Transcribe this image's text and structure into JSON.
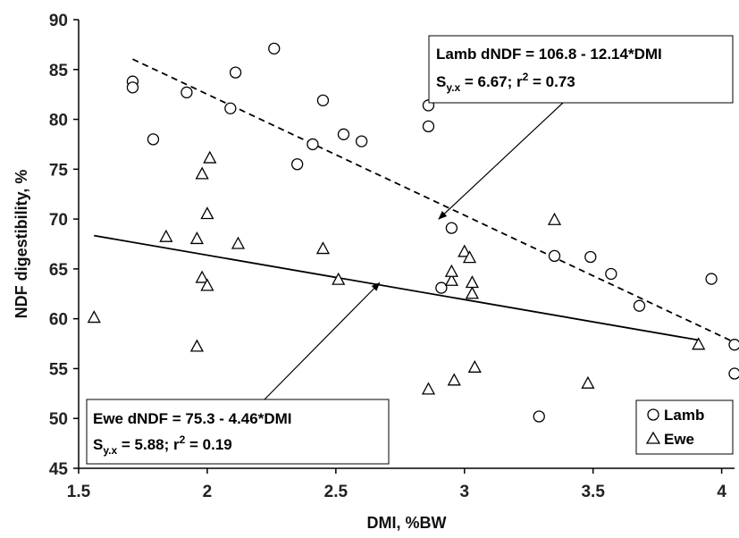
{
  "chart_data": {
    "type": "scatter",
    "xlabel": "DMI, %BW",
    "ylabel": "NDF digestibility, %",
    "xlim": [
      1.5,
      4.05
    ],
    "ylim": [
      45,
      90
    ],
    "xticks": [
      1.5,
      2,
      2.5,
      3,
      3.5,
      4
    ],
    "yticks": [
      45,
      50,
      55,
      60,
      65,
      70,
      75,
      80,
      85,
      90
    ],
    "grid": false,
    "legend_position": "bottom-right",
    "series": [
      {
        "name": "Lamb",
        "marker": "circle",
        "points": [
          [
            1.71,
            83.8
          ],
          [
            1.71,
            83.2
          ],
          [
            1.79,
            78.0
          ],
          [
            1.92,
            82.7
          ],
          [
            2.09,
            81.1
          ],
          [
            2.11,
            84.7
          ],
          [
            2.26,
            87.1
          ],
          [
            2.35,
            75.5
          ],
          [
            2.41,
            77.5
          ],
          [
            2.45,
            81.9
          ],
          [
            2.53,
            78.5
          ],
          [
            2.6,
            77.8
          ],
          [
            2.86,
            81.4
          ],
          [
            2.86,
            79.3
          ],
          [
            2.91,
            63.1
          ],
          [
            2.95,
            69.1
          ],
          [
            3.29,
            50.2
          ],
          [
            3.35,
            66.3
          ],
          [
            3.49,
            66.2
          ],
          [
            3.57,
            64.5
          ],
          [
            3.68,
            61.3
          ],
          [
            3.96,
            64.0
          ],
          [
            4.05,
            57.4
          ],
          [
            4.05,
            54.5
          ]
        ]
      },
      {
        "name": "Ewe",
        "marker": "triangle",
        "points": [
          [
            1.56,
            60.1
          ],
          [
            1.84,
            68.2
          ],
          [
            1.96,
            68.0
          ],
          [
            1.96,
            57.2
          ],
          [
            1.98,
            74.5
          ],
          [
            1.98,
            64.1
          ],
          [
            2.0,
            63.3
          ],
          [
            2.0,
            70.5
          ],
          [
            2.01,
            76.1
          ],
          [
            2.12,
            67.5
          ],
          [
            2.45,
            67.0
          ],
          [
            2.51,
            63.9
          ],
          [
            2.86,
            52.9
          ],
          [
            2.95,
            63.8
          ],
          [
            2.95,
            64.7
          ],
          [
            2.96,
            53.8
          ],
          [
            3.0,
            66.7
          ],
          [
            3.02,
            66.1
          ],
          [
            3.03,
            62.5
          ],
          [
            3.03,
            63.6
          ],
          [
            3.04,
            55.1
          ],
          [
            3.35,
            69.9
          ],
          [
            3.48,
            53.5
          ],
          [
            3.91,
            57.4
          ]
        ]
      }
    ],
    "regressions": [
      {
        "series": "Lamb",
        "intercept": 106.8,
        "slope": -12.14,
        "x_range": [
          1.71,
          4.05
        ],
        "style": "dashed"
      },
      {
        "series": "Ewe",
        "intercept": 75.3,
        "slope": -4.46,
        "x_range": [
          1.56,
          3.91
        ],
        "style": "solid"
      }
    ],
    "annotations": {
      "lamb": {
        "equation": "Lamb dNDF = 106.8 - 12.14*DMI",
        "stat_prefix": "S",
        "stat_sub": "y.x",
        "stat_rest": " = 6.67; r",
        "stat_sup": "2",
        "stat_end": " = 0.73",
        "arrow_to": [
          2.9,
          70.0
        ]
      },
      "ewe": {
        "equation": "Ewe dNDF = 75.3 - 4.46*DMI",
        "stat_prefix": "S",
        "stat_sub": "y.x",
        "stat_rest": " = 5.88; r",
        "stat_sup": "2",
        "stat_end": " = 0.19",
        "arrow_to": [
          2.67,
          63.6
        ]
      }
    }
  }
}
